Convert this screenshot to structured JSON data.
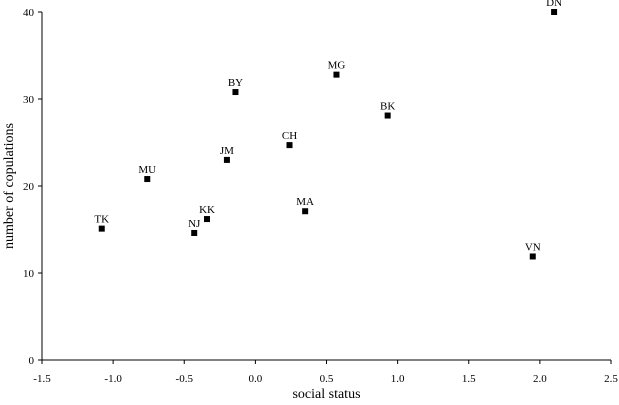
{
  "chart_data": {
    "type": "scatter",
    "title": "",
    "xlabel": "social status",
    "ylabel": "number of copulations",
    "xlim": [
      -1.5,
      2.5
    ],
    "ylim": [
      0,
      40
    ],
    "xticks": [
      -1.5,
      -1.0,
      -0.5,
      0.0,
      0.5,
      1.0,
      1.5,
      2.0,
      2.5
    ],
    "xtick_labels": [
      "-1.5",
      "-1.0",
      "-0.5",
      "0.0",
      "0.5",
      "1.0",
      "1.5",
      "2.0",
      "2.5"
    ],
    "yticks": [
      0,
      10,
      20,
      30,
      40
    ],
    "ytick_labels": [
      "0",
      "10",
      "20",
      "30",
      "40"
    ],
    "grid": false,
    "legend": "none",
    "marker": "square",
    "marker_color": "#000000",
    "points": [
      {
        "label": "DN",
        "x": 2.1,
        "y": 40.0
      },
      {
        "label": "MG",
        "x": 0.57,
        "y": 32.8
      },
      {
        "label": "BY",
        "x": -0.14,
        "y": 30.8
      },
      {
        "label": "BK",
        "x": 0.93,
        "y": 28.1
      },
      {
        "label": "CH",
        "x": 0.24,
        "y": 24.7
      },
      {
        "label": "JM",
        "x": -0.2,
        "y": 23.0
      },
      {
        "label": "MU",
        "x": -0.76,
        "y": 20.8
      },
      {
        "label": "MA",
        "x": 0.35,
        "y": 17.1
      },
      {
        "label": "KK",
        "x": -0.34,
        "y": 16.2
      },
      {
        "label": "NJ",
        "x": -0.43,
        "y": 14.6
      },
      {
        "label": "TK",
        "x": -1.08,
        "y": 15.1
      },
      {
        "label": "VN",
        "x": 1.95,
        "y": 11.9
      }
    ]
  }
}
